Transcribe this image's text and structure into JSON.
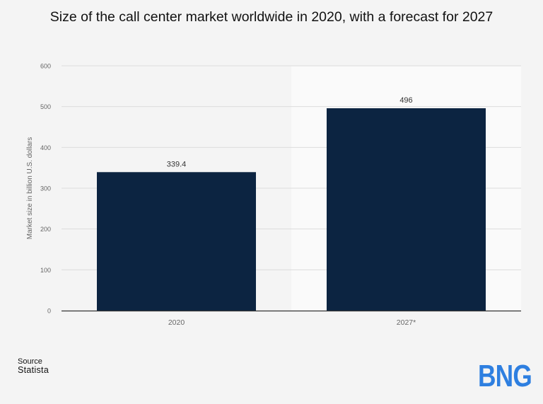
{
  "title": "Size of the call center market worldwide in 2020, with a forecast for 2027",
  "source": {
    "label": "Source",
    "name": "Statista"
  },
  "logo": {
    "text": "BNG",
    "color": "#2e7fe0"
  },
  "colors": {
    "bar": "#0c2441",
    "forecast_band": "#fafafa",
    "grid": "#dcdcdc",
    "axis": "#333333",
    "tick": "#666666"
  },
  "chart_data": {
    "type": "bar",
    "categories": [
      "2020",
      "2027*"
    ],
    "values": [
      339.4,
      496
    ],
    "data_labels": [
      "339.4",
      "496"
    ],
    "ylabel": "Market size in billion U.S. dollars",
    "xlabel": "",
    "ylim": [
      0,
      600
    ],
    "yticks": [
      0,
      100,
      200,
      300,
      400,
      500,
      600
    ],
    "grid": true,
    "forecast_categories": [
      "2027*"
    ]
  }
}
